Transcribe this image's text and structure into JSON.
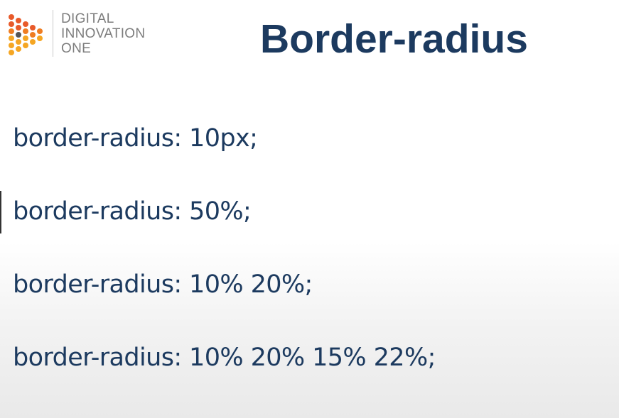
{
  "logo": {
    "lines": [
      "DIGITAL",
      "INNOVATION",
      "ONE"
    ],
    "colors": [
      "#f5a623",
      "#ef7d22",
      "#e85a2a",
      "#555555"
    ]
  },
  "slide": {
    "title": "Border-radius",
    "lines": [
      "border-radius: 10px;",
      "border-radius: 50%;",
      "border-radius: 10% 20%;",
      "border-radius: 10% 20% 15% 22%;"
    ]
  },
  "colors": {
    "title": "#1c3a5f",
    "logo_text": "#7d7d7d"
  }
}
